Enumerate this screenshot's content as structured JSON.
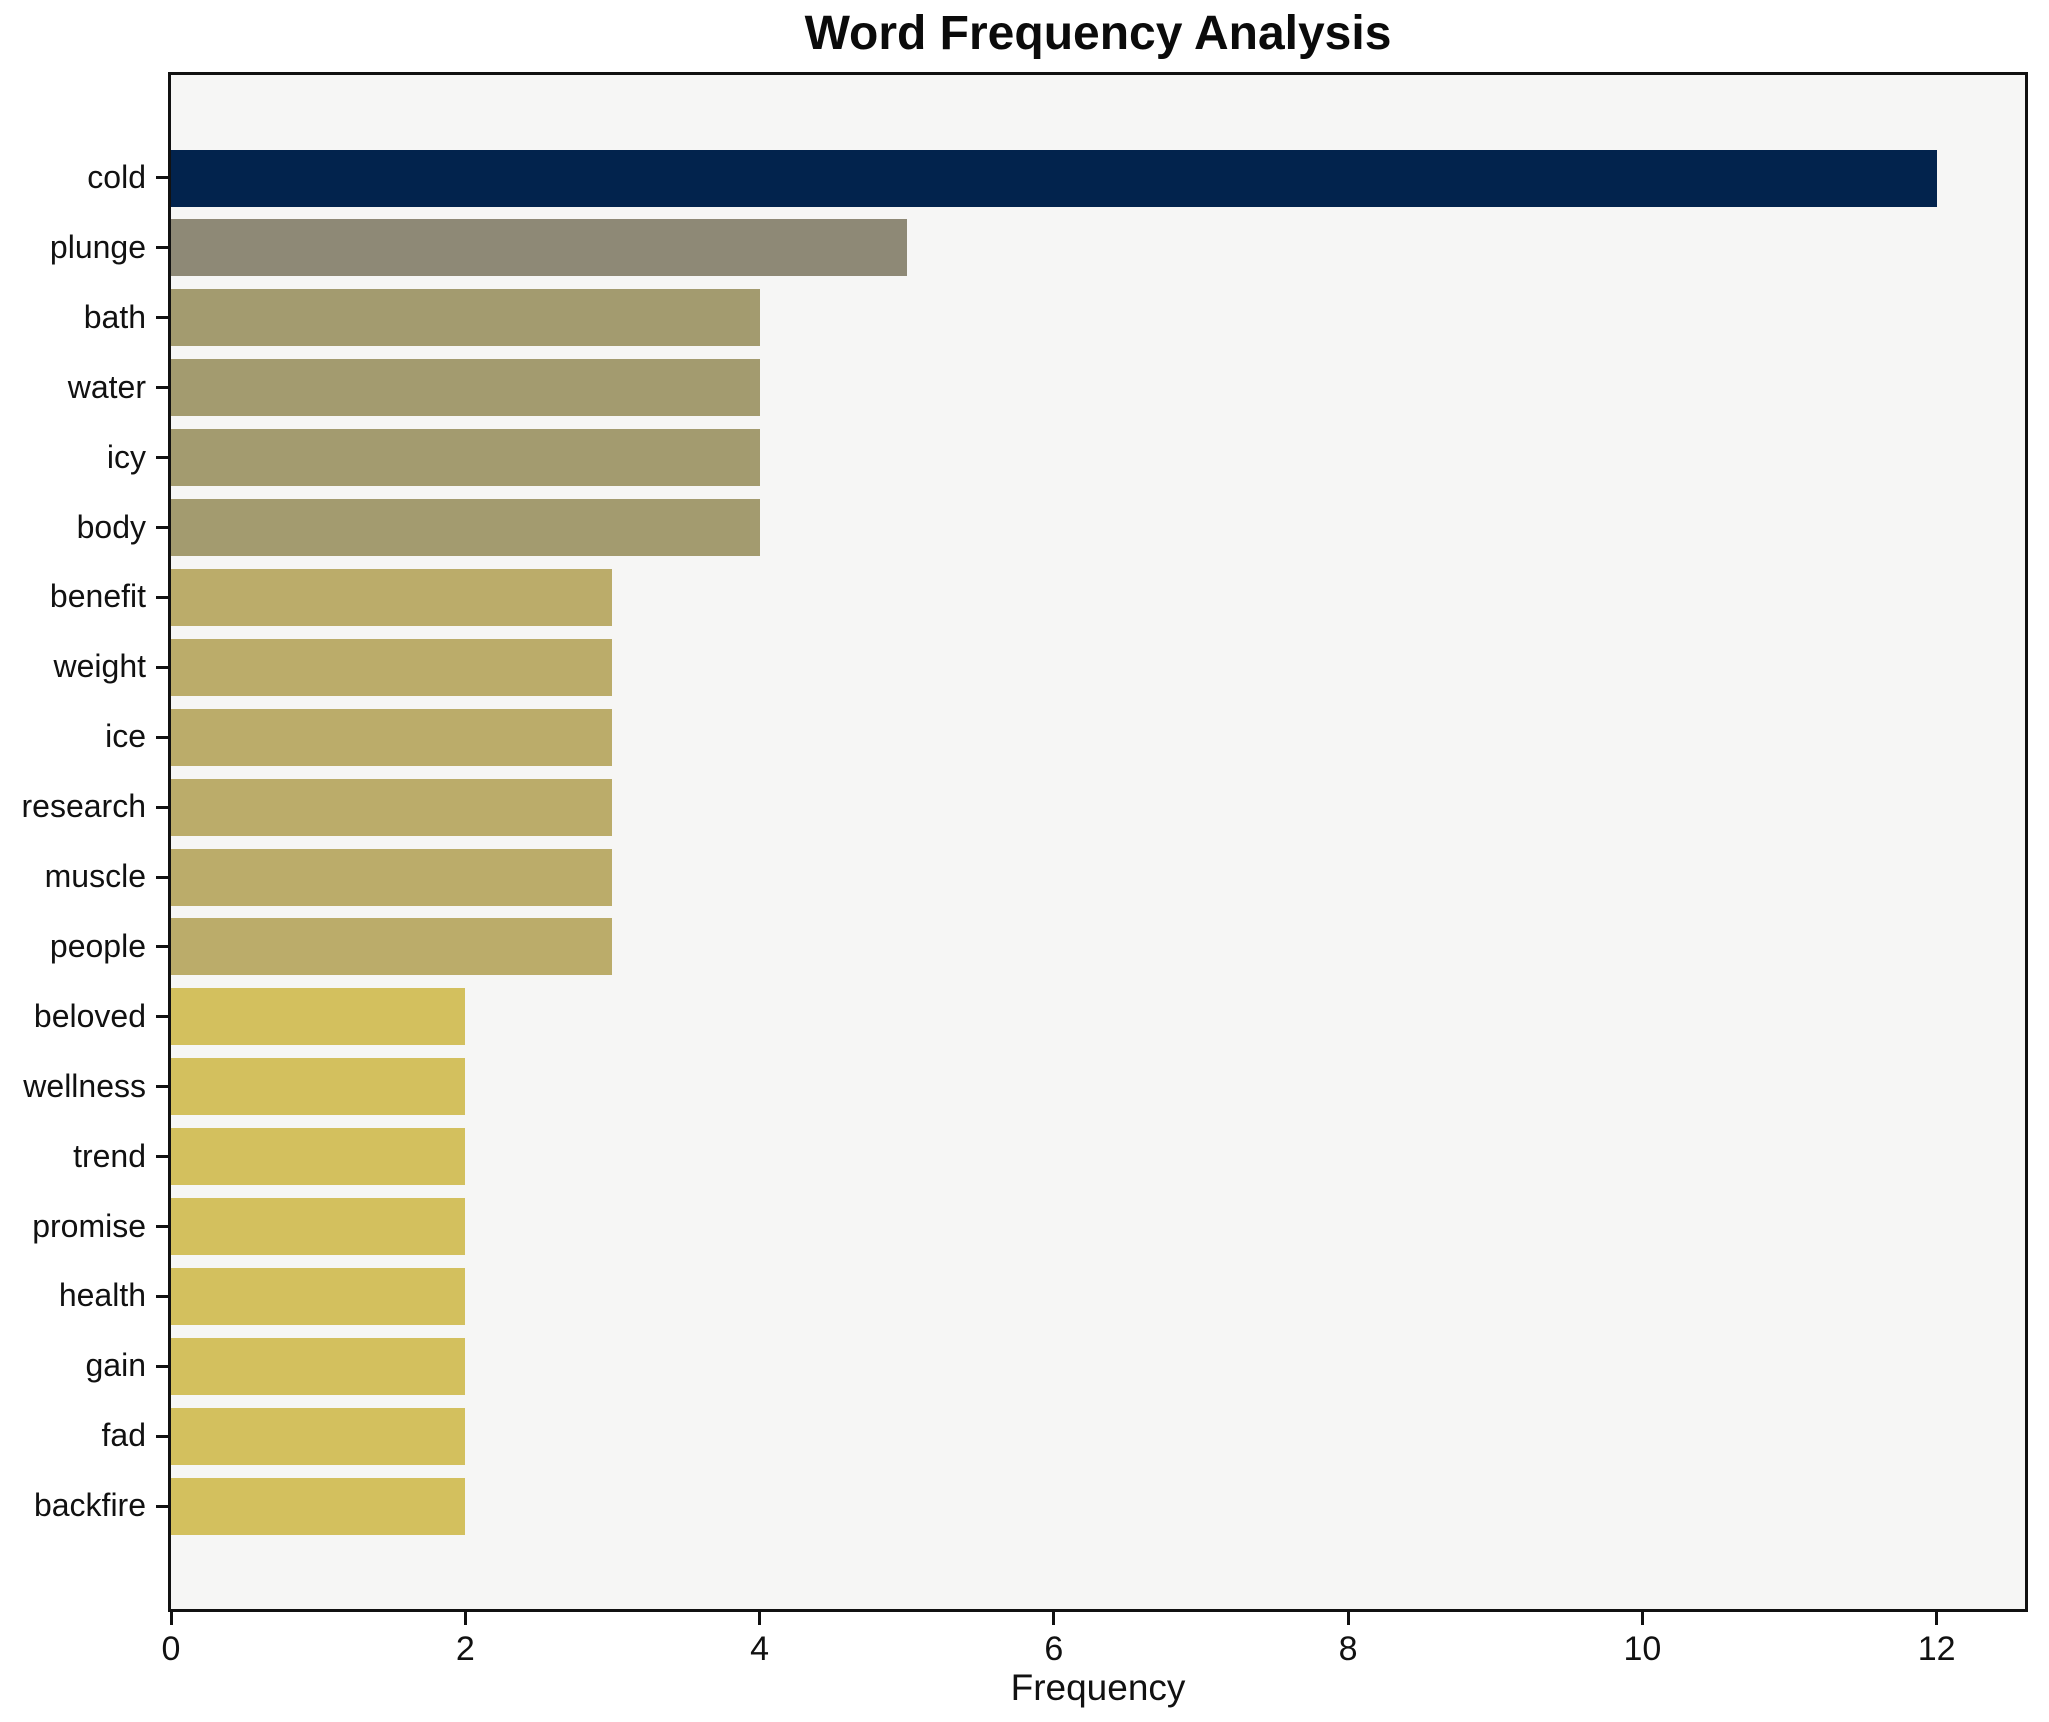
{
  "chart_data": {
    "type": "bar",
    "orientation": "horizontal",
    "title": "Word Frequency Analysis",
    "xlabel": "Frequency",
    "ylabel": "",
    "categories": [
      "cold",
      "plunge",
      "bath",
      "water",
      "icy",
      "body",
      "benefit",
      "weight",
      "ice",
      "research",
      "muscle",
      "people",
      "beloved",
      "wellness",
      "trend",
      "promise",
      "health",
      "gain",
      "fad",
      "backfire"
    ],
    "values": [
      12,
      5,
      4,
      4,
      4,
      4,
      3,
      3,
      3,
      3,
      3,
      3,
      2,
      2,
      2,
      2,
      2,
      2,
      2,
      2
    ],
    "bar_colors": [
      "#02234d",
      "#8e8976",
      "#a39b6f",
      "#a39b6f",
      "#a39b6f",
      "#a39b6f",
      "#bbac6a",
      "#bbac6a",
      "#bbac6a",
      "#bbac6a",
      "#bbac6a",
      "#bbac6a",
      "#d3c05e",
      "#d3c05e",
      "#d3c05e",
      "#d3c05e",
      "#d3c05e",
      "#d3c05e",
      "#d3c05e",
      "#d3c05e"
    ],
    "xticks": [
      0,
      2,
      4,
      6,
      8,
      10,
      12
    ],
    "xlim": [
      0,
      12.6
    ],
    "grid": false,
    "legend": false,
    "colors": {
      "figure_bg": "#ffffff",
      "axes_bg": "#f6f6f5",
      "spine": "#111111",
      "text": "#111111"
    }
  }
}
